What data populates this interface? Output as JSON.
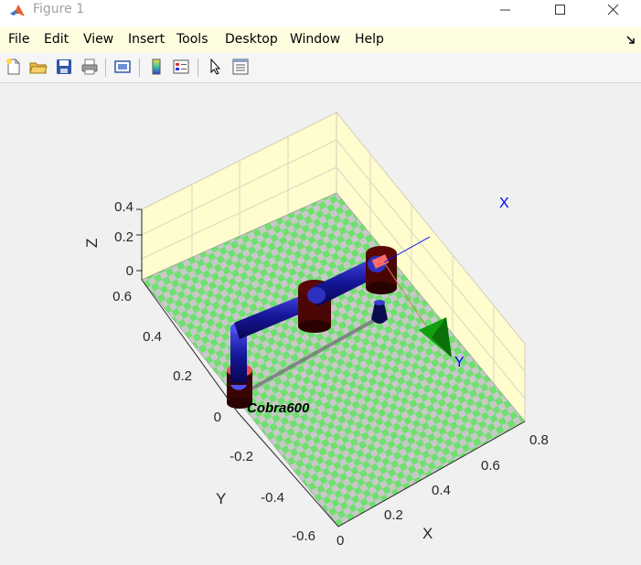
{
  "window": {
    "title": "Figure 1"
  },
  "menu": [
    "File",
    "Edit",
    "View",
    "Insert",
    "Tools",
    "Desktop",
    "Window",
    "Help"
  ],
  "toolbar_icons": [
    "new-figure-icon",
    "open-file-icon",
    "save-icon",
    "print-icon",
    "link-plot-icon",
    "insert-colorbar-icon",
    "insert-legend-icon",
    "edit-plot-arrow-icon",
    "property-inspector-icon"
  ],
  "plot": {
    "z_label": "Z",
    "y_label": "Y",
    "x_label": "X",
    "z_ticks": [
      "0.4",
      "0.2",
      "0"
    ],
    "y_ticks": [
      "0.6",
      "0.4",
      "0.2",
      "0",
      "-0.2",
      "-0.4",
      "-0.6"
    ],
    "x_ticks": [
      "0",
      "0.2",
      "0.4",
      "0.6",
      "0.8"
    ],
    "robot_name": "Cobra600",
    "frame_x_label": "X",
    "frame_y_label": "Y"
  },
  "colors": {
    "floor_green": "#6fe06f",
    "floor_gray": "#c8c8c8",
    "walls": "#fffccd",
    "link_blue": "#1a1aa8",
    "joint_dark_red": "#4a0505",
    "frame_x": "#0000ff",
    "frame_y": "#00a000"
  }
}
